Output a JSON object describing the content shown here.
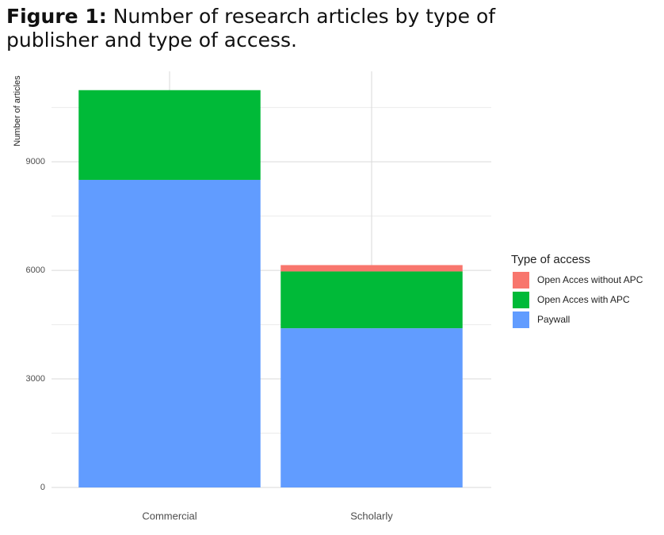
{
  "chart_data": {
    "type": "stacked_bar",
    "figure_label": "Figure 1:",
    "title": "Number of research articles by type of publisher and type of access.",
    "y_label": "Number of articles",
    "legend_title": "Type of access",
    "categories": [
      "Commercial",
      "Scholarly"
    ],
    "series": [
      {
        "name": "Open Acces without APC",
        "color": "#F8766D",
        "values": [
          0,
          175
        ]
      },
      {
        "name": "Open Acces with APC",
        "color": "#00BA38",
        "values": [
          2480,
          1570
        ]
      },
      {
        "name": "Paywall",
        "color": "#619CFF",
        "values": [
          8500,
          4400
        ]
      }
    ],
    "ylim": [
      0,
      11500
    ],
    "yticks": [
      0,
      3000,
      6000,
      9000
    ],
    "minor_yticks": [
      1500,
      4500,
      7500,
      10500
    ],
    "grid": true,
    "legend": "right"
  }
}
